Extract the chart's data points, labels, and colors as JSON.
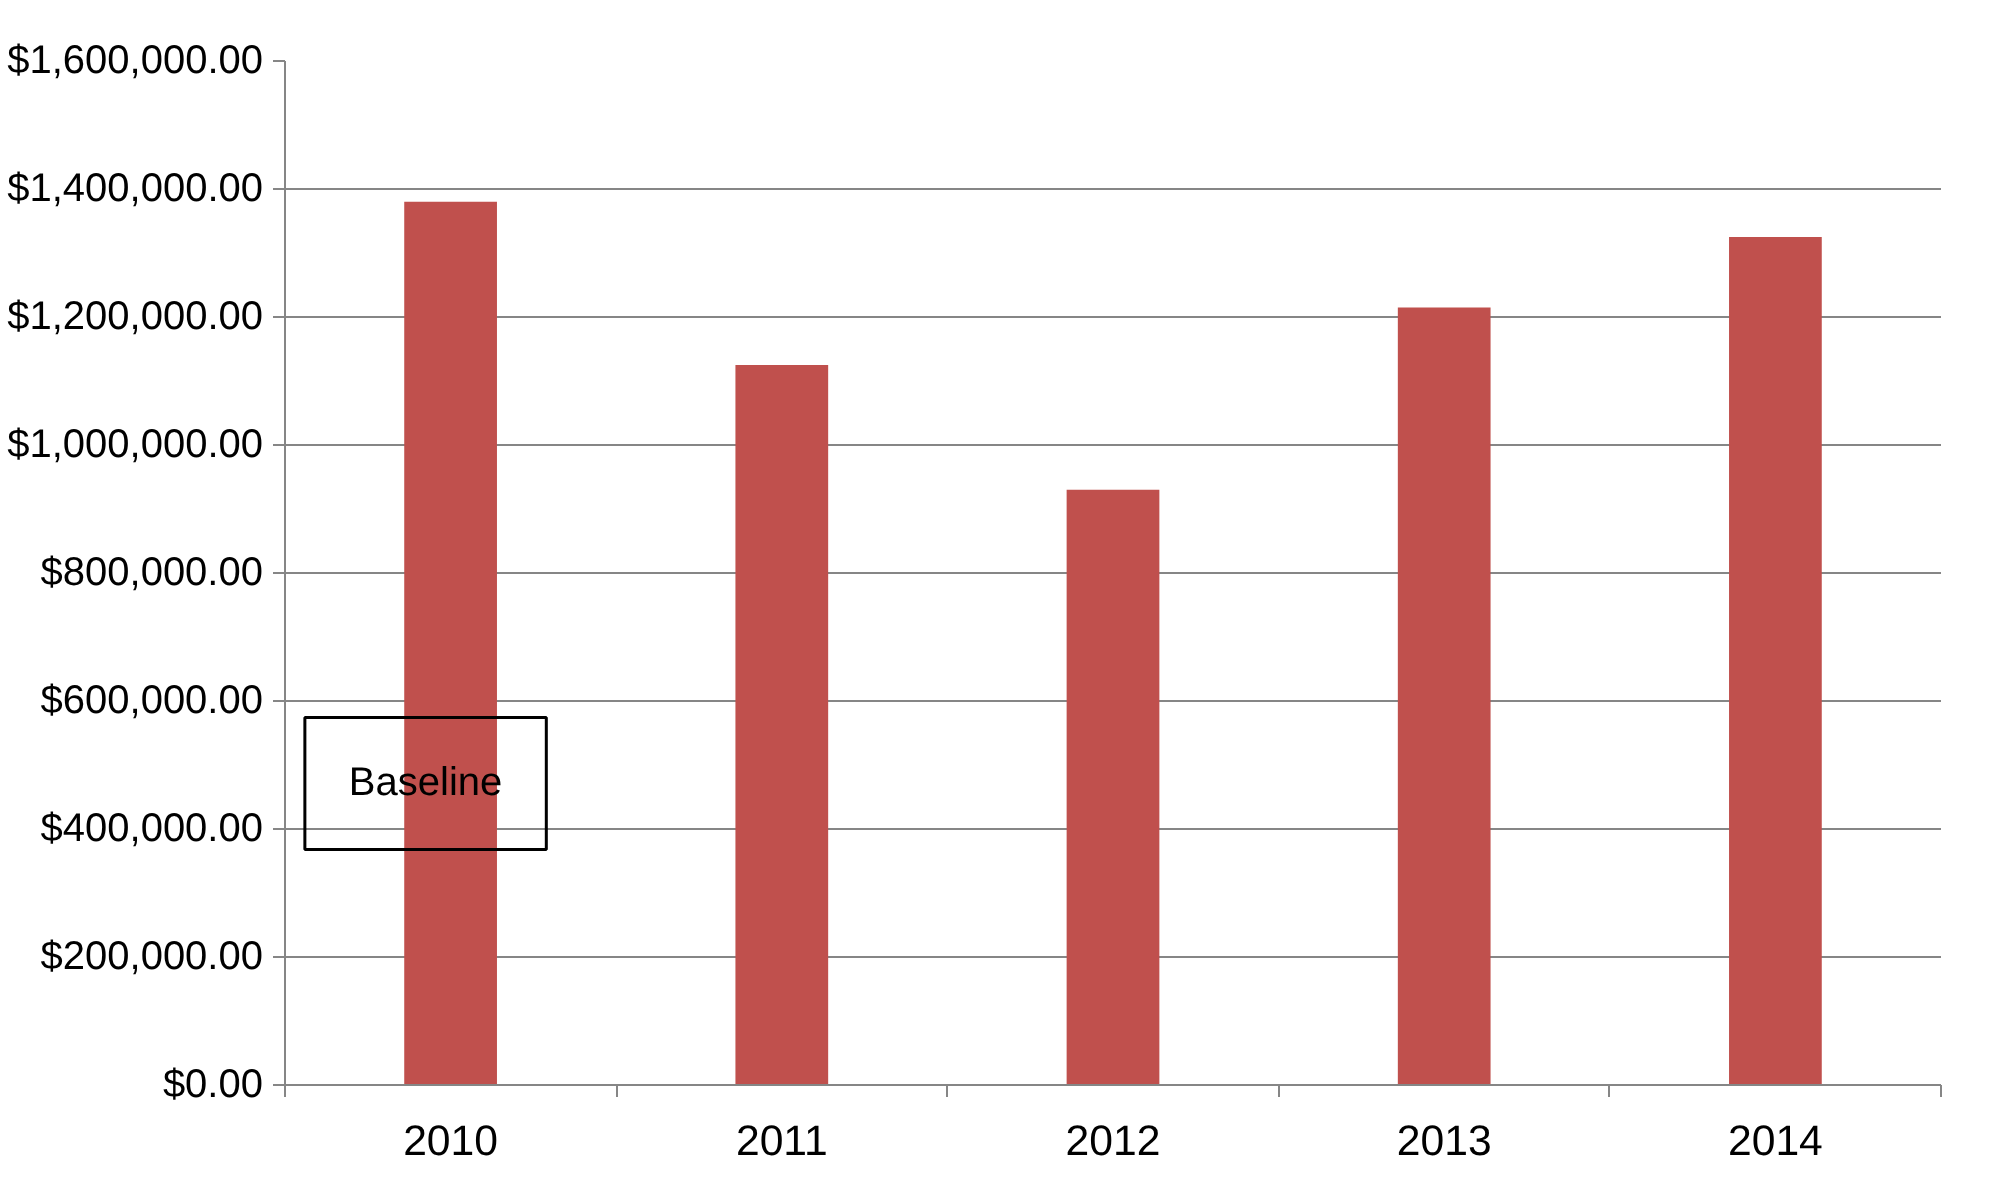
{
  "chart_data": {
    "type": "bar",
    "categories": [
      "2010",
      "2011",
      "2012",
      "2013",
      "2014"
    ],
    "values": [
      1380000,
      1125000,
      930000,
      1215000,
      1325000
    ],
    "color": "#c0504d",
    "ylim": [
      0,
      1600000
    ],
    "yticks": [
      {
        "value": 0,
        "label": "$0.00"
      },
      {
        "value": 200000,
        "label": "$200,000.00"
      },
      {
        "value": 400000,
        "label": "$400,000.00"
      },
      {
        "value": 600000,
        "label": "$600,000.00"
      },
      {
        "value": 800000,
        "label": "$800,000.00"
      },
      {
        "value": 1000000,
        "label": "$1,000,000.00"
      },
      {
        "value": 1200000,
        "label": "$1,200,000.00"
      },
      {
        "value": 1400000,
        "label": "$1,400,000.00"
      },
      {
        "value": 1600000,
        "label": "$1,600,000.00"
      }
    ],
    "grid": "y",
    "annotations": [
      "Baseline"
    ]
  }
}
